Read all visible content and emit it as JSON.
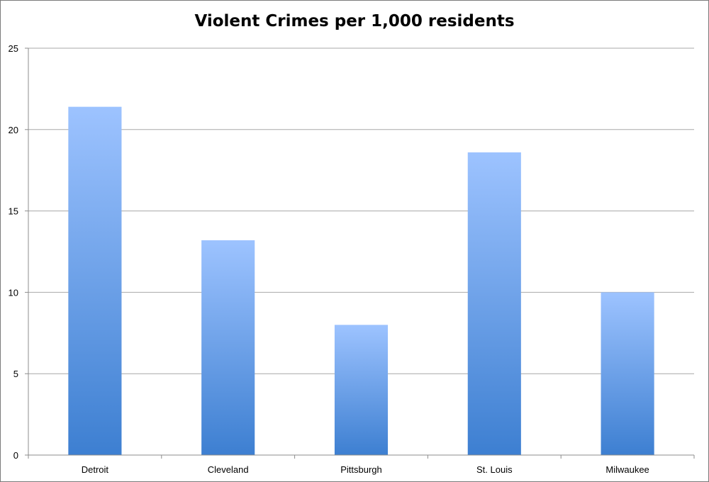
{
  "chart_data": {
    "type": "bar",
    "title": "Violent Crimes per 1,000 residents",
    "xlabel": "",
    "ylabel": "",
    "categories": [
      "Detroit",
      "Cleveland",
      "Pittsburgh",
      "St. Louis",
      "Milwaukee"
    ],
    "values": [
      21.4,
      13.2,
      8.0,
      18.6,
      10.0
    ],
    "ylim": [
      0,
      25
    ],
    "yticks": [
      "0",
      "5",
      "10",
      "15",
      "20",
      "25"
    ],
    "grid": true,
    "legend": "none",
    "colors": {
      "bar_top": "#9dc3ff",
      "bar_bottom": "#3d7fd1",
      "gridline": "#a8a8a8",
      "axis": "#8c8c8c"
    }
  }
}
